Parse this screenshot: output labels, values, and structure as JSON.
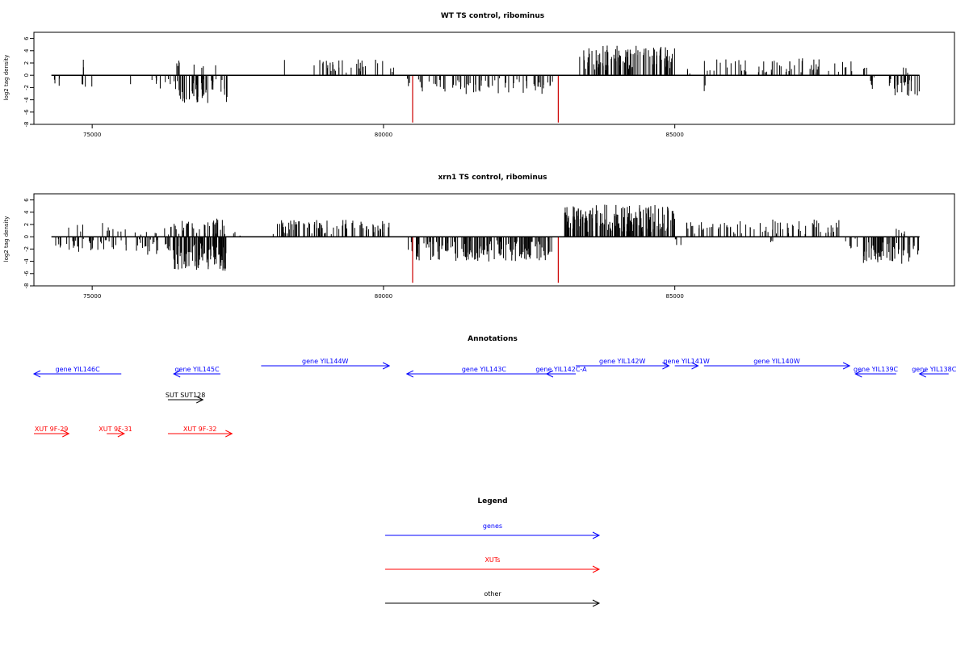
{
  "figure": {
    "background": "#ffffff"
  },
  "chart_data": [
    {
      "type": "bar",
      "title": "WT TS control, ribominus",
      "ylabel": "log2 tag density",
      "xlabel": "",
      "xlim": [
        74000,
        89800
      ],
      "ylim": [
        -8,
        7
      ],
      "xticks": [
        75000,
        80000,
        85000
      ],
      "yticks": [
        -8,
        -6,
        -4,
        -2,
        0,
        2,
        4,
        6
      ],
      "baseline": {
        "x0": 74300,
        "x1": 89200,
        "value": 0
      },
      "grid": false,
      "legend": "none",
      "markers": [
        {
          "x": 80500,
          "value": -7.7,
          "color": "#cc0000"
        },
        {
          "x": 83000,
          "value": -7.7,
          "color": "#cc0000"
        }
      ],
      "density": [
        {
          "x0": 74350,
          "x1": 74550,
          "sign": "neg",
          "mean": 1.0,
          "count": 4
        },
        {
          "x0": 74800,
          "x1": 75000,
          "sign": "pos",
          "mean": 1.5,
          "count": 2
        },
        {
          "x0": 74800,
          "x1": 75000,
          "sign": "neg",
          "mean": 1.5,
          "count": 4
        },
        {
          "x0": 75650,
          "x1": 75700,
          "sign": "neg",
          "mean": 1.5,
          "count": 1
        },
        {
          "x0": 75950,
          "x1": 76400,
          "sign": "neg",
          "mean": 1.3,
          "count": 8
        },
        {
          "x0": 76300,
          "x1": 76500,
          "sign": "pos",
          "mean": 1.6,
          "count": 4
        },
        {
          "x0": 76400,
          "x1": 77350,
          "sign": "neg",
          "mean": 2.6,
          "count": 55
        },
        {
          "x0": 76700,
          "x1": 77200,
          "sign": "pos",
          "mean": 1.0,
          "count": 4
        },
        {
          "x0": 78300,
          "x1": 78350,
          "sign": "pos",
          "mean": 2.0,
          "count": 1
        },
        {
          "x0": 78800,
          "x1": 80000,
          "sign": "pos",
          "mean": 1.6,
          "count": 32
        },
        {
          "x0": 80100,
          "x1": 80200,
          "sign": "pos",
          "mean": 0.8,
          "count": 3
        },
        {
          "x0": 80350,
          "x1": 80450,
          "sign": "neg",
          "mean": 1.5,
          "count": 3
        },
        {
          "x0": 80600,
          "x1": 82900,
          "sign": "neg",
          "mean": 1.8,
          "count": 70
        },
        {
          "x0": 83300,
          "x1": 85000,
          "sign": "pos",
          "mean": 2.8,
          "count": 110
        },
        {
          "x0": 85200,
          "x1": 85300,
          "sign": "pos",
          "mean": 0.7,
          "count": 3
        },
        {
          "x0": 85500,
          "x1": 88300,
          "sign": "pos",
          "mean": 1.6,
          "count": 60
        },
        {
          "x0": 85500,
          "x1": 85600,
          "sign": "neg",
          "mean": 2.0,
          "count": 2
        },
        {
          "x0": 88250,
          "x1": 88800,
          "sign": "neg",
          "mean": 1.3,
          "count": 12
        },
        {
          "x0": 88200,
          "x1": 88300,
          "sign": "pos",
          "mean": 0.8,
          "count": 2
        },
        {
          "x0": 88700,
          "x1": 89200,
          "sign": "neg",
          "mean": 2.0,
          "count": 22
        },
        {
          "x0": 88900,
          "x1": 89000,
          "sign": "pos",
          "mean": 0.8,
          "count": 3
        }
      ]
    },
    {
      "type": "bar",
      "title": "xrn1 TS control, ribominus",
      "ylabel": "log2 tag density",
      "xlabel": "",
      "xlim": [
        74000,
        89800
      ],
      "ylim": [
        -8,
        7
      ],
      "xticks": [
        75000,
        80000,
        85000
      ],
      "yticks": [
        -8,
        -6,
        -4,
        -2,
        0,
        2,
        4,
        6
      ],
      "baseline": {
        "x0": 74300,
        "x1": 89200,
        "value": 0
      },
      "grid": false,
      "legend": "none",
      "markers": [
        {
          "x": 80500,
          "value": -7.5,
          "color": "#cc0000"
        },
        {
          "x": 83000,
          "value": -7.5,
          "color": "#cc0000"
        }
      ],
      "density": [
        {
          "x0": 74350,
          "x1": 75900,
          "sign": "neg",
          "mean": 1.4,
          "count": 45
        },
        {
          "x0": 74400,
          "x1": 75900,
          "sign": "pos",
          "mean": 1.3,
          "count": 14
        },
        {
          "x0": 75900,
          "x1": 76400,
          "sign": "neg",
          "mean": 1.7,
          "count": 22
        },
        {
          "x0": 75900,
          "x1": 76400,
          "sign": "pos",
          "mean": 1.2,
          "count": 8
        },
        {
          "x0": 76400,
          "x1": 77300,
          "sign": "neg",
          "mean": 3.2,
          "count": 90
        },
        {
          "x0": 76400,
          "x1": 77300,
          "sign": "pos",
          "mean": 1.7,
          "count": 40
        },
        {
          "x0": 77400,
          "x1": 77600,
          "sign": "pos",
          "mean": 0.6,
          "count": 3
        },
        {
          "x0": 78100,
          "x1": 80100,
          "sign": "pos",
          "mean": 1.6,
          "count": 85
        },
        {
          "x0": 80350,
          "x1": 80500,
          "sign": "neg",
          "mean": 1.5,
          "count": 5
        },
        {
          "x0": 80500,
          "x1": 82900,
          "sign": "neg",
          "mean": 2.3,
          "count": 140
        },
        {
          "x0": 83100,
          "x1": 85000,
          "sign": "pos",
          "mean": 3.0,
          "count": 170
        },
        {
          "x0": 85000,
          "x1": 85200,
          "sign": "neg",
          "mean": 0.8,
          "count": 4
        },
        {
          "x0": 85200,
          "x1": 86600,
          "sign": "pos",
          "mean": 1.5,
          "count": 40
        },
        {
          "x0": 86600,
          "x1": 87900,
          "sign": "pos",
          "mean": 1.6,
          "count": 35
        },
        {
          "x0": 86600,
          "x1": 86700,
          "sign": "neg",
          "mean": 0.8,
          "count": 3
        },
        {
          "x0": 87900,
          "x1": 88200,
          "sign": "neg",
          "mean": 1.2,
          "count": 6
        },
        {
          "x0": 88200,
          "x1": 89200,
          "sign": "neg",
          "mean": 2.6,
          "count": 60
        },
        {
          "x0": 88800,
          "x1": 89100,
          "sign": "pos",
          "mean": 0.8,
          "count": 5
        }
      ]
    }
  ],
  "annotations": {
    "title": "Annotations",
    "tracks": [
      {
        "label": "gene YIL146C",
        "start": 74000,
        "end": 75500,
        "strand": "-",
        "row": 2,
        "type": "gene"
      },
      {
        "label": "gene YIL145C",
        "start": 76400,
        "end": 77200,
        "strand": "-",
        "row": 2,
        "type": "gene"
      },
      {
        "label": "gene YIL144W",
        "start": 77900,
        "end": 80100,
        "strand": "+",
        "row": 1,
        "type": "gene"
      },
      {
        "label": "gene YIL143C",
        "start": 80400,
        "end": 83050,
        "strand": "-",
        "row": 2,
        "type": "gene"
      },
      {
        "label": "gene YIL142C-A",
        "start": 82800,
        "end": 83300,
        "strand": "-",
        "row": 2,
        "type": "gene"
      },
      {
        "label": "gene YIL142W",
        "start": 83300,
        "end": 84900,
        "strand": "+",
        "row": 1,
        "type": "gene"
      },
      {
        "label": "gene YIL141W",
        "start": 85000,
        "end": 85400,
        "strand": "+",
        "row": 1,
        "type": "gene"
      },
      {
        "label": "gene YIL140W",
        "start": 85500,
        "end": 88000,
        "strand": "+",
        "row": 1,
        "type": "gene"
      },
      {
        "label": "gene YIL139C",
        "start": 88100,
        "end": 88800,
        "strand": "-",
        "row": 2,
        "type": "gene"
      },
      {
        "label": "gene YIL138C",
        "start": 89200,
        "end": 89700,
        "strand": "-",
        "row": 2,
        "type": "gene"
      },
      {
        "label": "SUT SUT128",
        "start": 76300,
        "end": 76900,
        "strand": "+",
        "row": 3,
        "type": "other"
      },
      {
        "label": "XUT 9F-29",
        "start": 74000,
        "end": 74600,
        "strand": "+",
        "row": 4,
        "type": "xut"
      },
      {
        "label": "XUT 9F-31",
        "start": 75250,
        "end": 75550,
        "strand": "+",
        "row": 4,
        "type": "xut"
      },
      {
        "label": "XUT 9F-32",
        "start": 76300,
        "end": 77400,
        "strand": "+",
        "row": 4,
        "type": "xut"
      }
    ]
  },
  "legend": {
    "title": "Legend",
    "entries": [
      {
        "label": "genes",
        "color": "#0000ff"
      },
      {
        "label": "XUTs",
        "color": "#ff0000"
      },
      {
        "label": "other",
        "color": "#000000"
      }
    ]
  },
  "colors": {
    "gene": "#0000ff",
    "xut": "#ff0000",
    "other": "#000000",
    "marker": "#cc0000"
  }
}
